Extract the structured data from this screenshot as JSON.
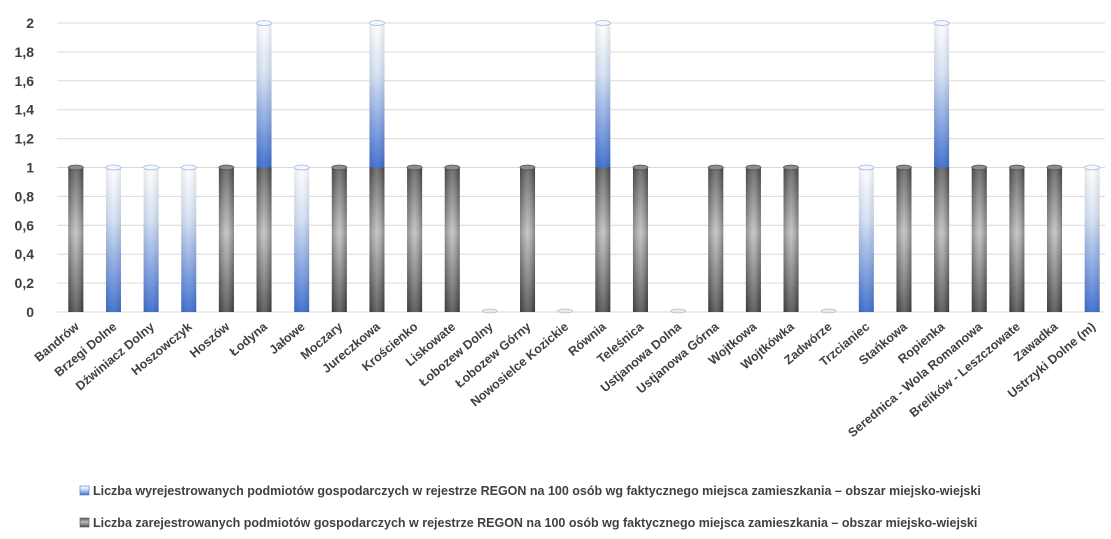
{
  "colors": {
    "series_blue": "#4472c4",
    "series_gray": "#7f7f7f",
    "grid": "#d9d9d9",
    "text": "#404040"
  },
  "chart_data": {
    "type": "bar",
    "stacked": true,
    "grid": true,
    "legend_position": "bottom",
    "ylim": [
      0,
      2
    ],
    "yticks": [
      "0",
      "0,2",
      "0,4",
      "0,6",
      "0,8",
      "1",
      "1,2",
      "1,4",
      "1,6",
      "1,8",
      "2"
    ],
    "categories": [
      "Bandrów",
      "Brzegi Dolne",
      "Dźwiniacz Dolny",
      "Hoszowczyk",
      "Hoszów",
      "Łodyna",
      "Jałowe",
      "Moczary",
      "Jureczkowa",
      "Krościenko",
      "Liskowate",
      "Łobozew Dolny",
      "Łobozew Górny",
      "Nowosielce Kozickie",
      "Równia",
      "Teleśnica",
      "Ustjanowa Dolna",
      "Ustjanowa Górna",
      "Wojtkowa",
      "Wojtkówka",
      "Zadwórze",
      "Trzcianiec",
      "Stańkowa",
      "Ropienka",
      "Serednica - Wola Romanowa",
      "Brelików - Leszczowate",
      "Zawadka",
      "Ustrzyki Dolne (m)"
    ],
    "series": [
      {
        "name": "Liczba zarejestrowanych podmiotów gospodarczych w rejestrze REGON na 100 osób wg faktycznego miejsca zamieszkania – obszar miejsko-wiejski",
        "color": "#7f7f7f",
        "values": [
          1,
          0,
          0,
          0,
          1,
          1,
          0,
          1,
          1,
          1,
          1,
          0,
          1,
          0,
          1,
          1,
          0,
          1,
          1,
          1,
          0,
          0,
          1,
          1,
          1,
          1,
          1,
          0
        ]
      },
      {
        "name": "Liczba wyrejestrowanych podmiotów gospodarczych w rejestrze REGON na 100 osób wg faktycznego miejsca zamieszkania – obszar miejsko-wiejski",
        "color": "#4472c4",
        "values": [
          0,
          1,
          1,
          1,
          0,
          1,
          1,
          0,
          1,
          0,
          0,
          0,
          0,
          0,
          1,
          0,
          0,
          0,
          0,
          0,
          0,
          1,
          0,
          1,
          0,
          0,
          0,
          1
        ]
      }
    ],
    "legend": [
      "Liczba wyrejestrowanych podmiotów gospodarczych w rejestrze REGON na 100 osób wg faktycznego miejsca zamieszkania – obszar miejsko-wiejski",
      "Liczba zarejestrowanych podmiotów gospodarczych w rejestrze REGON na 100 osób wg faktycznego miejsca zamieszkania – obszar miejsko-wiejski"
    ]
  }
}
